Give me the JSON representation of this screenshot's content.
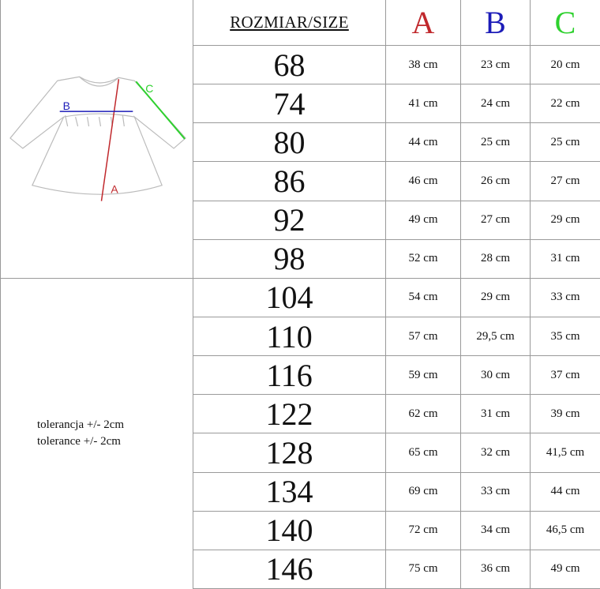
{
  "header": {
    "size_label": "ROZMIAR/SIZE",
    "col_a": "A",
    "col_b": "B",
    "col_c": "C"
  },
  "colors": {
    "A": "#c0282c",
    "B": "#1c1cb8",
    "C": "#2ed12e"
  },
  "diagram": {
    "label_a": "A",
    "label_b": "B",
    "label_c": "C"
  },
  "tolerance": [
    "tolerancja +/- 2cm",
    "tolerance +/- 2cm"
  ],
  "rows": [
    {
      "size": "68",
      "a": "38 cm",
      "b": "23 cm",
      "c": "20 cm"
    },
    {
      "size": "74",
      "a": "41 cm",
      "b": "24 cm",
      "c": "22 cm"
    },
    {
      "size": "80",
      "a": "44 cm",
      "b": "25 cm",
      "c": "25 cm"
    },
    {
      "size": "86",
      "a": "46 cm",
      "b": "26 cm",
      "c": "27 cm"
    },
    {
      "size": "92",
      "a": "49 cm",
      "b": "27 cm",
      "c": "29 cm"
    },
    {
      "size": "98",
      "a": "52 cm",
      "b": "28 cm",
      "c": "31 cm"
    },
    {
      "size": "104",
      "a": "54 cm",
      "b": "29 cm",
      "c": "33 cm"
    },
    {
      "size": "110",
      "a": "57 cm",
      "b": "29,5 cm",
      "c": "35 cm"
    },
    {
      "size": "116",
      "a": "59 cm",
      "b": "30 cm",
      "c": "37 cm"
    },
    {
      "size": "122",
      "a": "62 cm",
      "b": "31 cm",
      "c": "39 cm"
    },
    {
      "size": "128",
      "a": "65 cm",
      "b": "32 cm",
      "c": "41,5 cm"
    },
    {
      "size": "134",
      "a": "69 cm",
      "b": "33 cm",
      "c": "44 cm"
    },
    {
      "size": "140",
      "a": "72 cm",
      "b": "34 cm",
      "c": "46,5 cm"
    },
    {
      "size": "146",
      "a": "75 cm",
      "b": "36 cm",
      "c": "49 cm"
    }
  ]
}
